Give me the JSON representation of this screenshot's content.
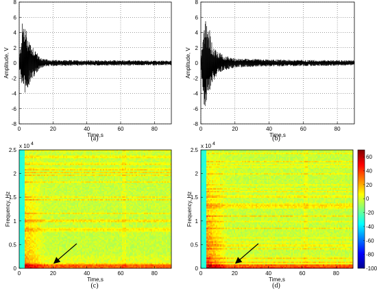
{
  "chart_data": [
    {
      "id": "a",
      "type": "line",
      "caption": "(a)",
      "xlabel": "Time,s",
      "ylabel": "Amplitude, V",
      "xlim": [
        0,
        90
      ],
      "ylim": [
        -8,
        8
      ],
      "xticks": [
        0,
        20,
        40,
        60,
        80
      ],
      "yticks": [
        -8,
        -6,
        -4,
        -2,
        0,
        2,
        4,
        6,
        8
      ],
      "grid": true,
      "series": [
        {
          "values_description": "",
          "x": [
            0,
            2,
            3,
            4,
            5,
            6,
            8,
            10,
            12,
            15,
            20,
            40,
            60,
            90
          ],
          "envelope_max": [
            0.4,
            5.8,
            5.4,
            4.6,
            4.0,
            3.2,
            2.4,
            1.6,
            0.8,
            0.5,
            0.4,
            0.35,
            0.35,
            0.3
          ],
          "envelope_min": [
            -0.4,
            -4.2,
            -4.6,
            -4.0,
            -3.4,
            -2.8,
            -2.0,
            -1.4,
            -0.8,
            -0.5,
            -0.4,
            -0.35,
            -0.35,
            -0.3
          ]
        }
      ]
    },
    {
      "id": "b",
      "type": "line",
      "caption": "(b)",
      "xlabel": "Time,s",
      "ylabel": "Amplitude, V",
      "xlim": [
        0,
        90
      ],
      "ylim": [
        -8,
        8
      ],
      "xticks": [
        0,
        20,
        40,
        60,
        80
      ],
      "yticks": [
        -8,
        -6,
        -4,
        -2,
        0,
        2,
        4,
        6,
        8
      ],
      "grid": true,
      "series": [
        {
          "x": [
            0,
            2,
            3,
            4,
            5,
            6,
            8,
            10,
            12,
            15,
            20,
            40,
            60,
            90
          ],
          "envelope_max": [
            0.5,
            4.8,
            6.0,
            5.2,
            4.6,
            3.2,
            2.2,
            1.6,
            1.2,
            0.9,
            0.6,
            0.45,
            0.4,
            0.35
          ],
          "envelope_min": [
            -0.5,
            -6.5,
            -6.0,
            -5.2,
            -4.0,
            -3.0,
            -2.2,
            -1.6,
            -1.2,
            -0.9,
            -0.6,
            -0.45,
            -0.4,
            -0.35
          ]
        }
      ]
    },
    {
      "id": "c",
      "type": "heatmap",
      "caption": "(c)",
      "xlabel": "Time,s",
      "ylabel": "Frequency, Hz",
      "xlim": [
        0,
        90
      ],
      "ylim": [
        0,
        25000
      ],
      "xticks": [
        0,
        20,
        40,
        60,
        80
      ],
      "yticks": [
        0,
        0.5,
        1,
        1.5,
        2,
        2.5
      ],
      "ytick_multiplier": "x 10",
      "ytick_exponent": "4",
      "annotation": "arrow pointing to ~20 s, ~1500 Hz"
    },
    {
      "id": "d",
      "type": "heatmap",
      "caption": "(d)",
      "xlabel": "Time,s",
      "ylabel": "Frequency, Hz",
      "xlim": [
        0,
        90
      ],
      "ylim": [
        0,
        25000
      ],
      "xticks": [
        0,
        20,
        40,
        60,
        80
      ],
      "yticks": [
        0,
        0.5,
        1,
        1.5,
        2,
        2.5
      ],
      "ytick_multiplier": "x 10",
      "ytick_exponent": "4",
      "annotation": "arrow pointing to ~20 s, ~1500 Hz",
      "colorbar": {
        "ticks": [
          60,
          40,
          20,
          0,
          -20,
          -40,
          -60,
          -80,
          -100
        ],
        "range": [
          -100,
          70
        ],
        "colors": [
          "#00008f",
          "#0000ff",
          "#0080ff",
          "#00ffff",
          "#80ff80",
          "#ffff00",
          "#ff8000",
          "#ff0000",
          "#800000"
        ]
      }
    }
  ]
}
